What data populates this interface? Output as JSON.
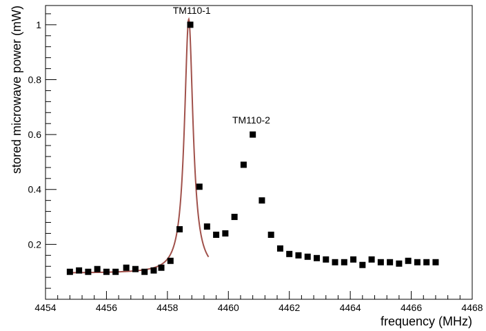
{
  "chart_data": {
    "type": "scatter",
    "xlabel": "frequency (MHz)",
    "ylabel": "stored microwave power (mW)",
    "xlim": [
      4454,
      4468
    ],
    "ylim": [
      0.0,
      1.07
    ],
    "x_ticks": [
      4454,
      4456,
      4458,
      4460,
      4462,
      4464,
      4466,
      4468
    ],
    "x_tick_labels": [
      "4454",
      "4456",
      "4458",
      "4460",
      "4462",
      "4464",
      "4466",
      "4468"
    ],
    "y_ticks": [
      0.2,
      0.4,
      0.6,
      0.8,
      1.0
    ],
    "y_tick_labels": [
      "0.2",
      "0.4",
      "0.6",
      "0.8",
      "1"
    ],
    "grid": false,
    "series": [
      {
        "type": "scatter",
        "marker": "square",
        "color": "#000000",
        "x": [
          4454.8,
          4455.1,
          4455.4,
          4455.7,
          4456.0,
          4456.3,
          4456.65,
          4456.95,
          4457.25,
          4457.55,
          4457.8,
          4458.1,
          4458.4,
          4458.75,
          4459.05,
          4459.3,
          4459.6,
          4459.9,
          4460.2,
          4460.5,
          4460.8,
          4461.1,
          4461.4,
          4461.7,
          4462.0,
          4462.3,
          4462.6,
          4462.9,
          4463.2,
          4463.5,
          4463.8,
          4464.1,
          4464.4,
          4464.7,
          4465.0,
          4465.3,
          4465.6,
          4465.9,
          4466.2,
          4466.5,
          4466.8
        ],
        "y": [
          0.1,
          0.105,
          0.1,
          0.11,
          0.1,
          0.1,
          0.115,
          0.11,
          0.1,
          0.105,
          0.115,
          0.14,
          0.255,
          1.0,
          0.41,
          0.265,
          0.235,
          0.24,
          0.3,
          0.49,
          0.6,
          0.36,
          0.235,
          0.185,
          0.165,
          0.16,
          0.155,
          0.15,
          0.145,
          0.135,
          0.135,
          0.145,
          0.125,
          0.145,
          0.135,
          0.135,
          0.13,
          0.14,
          0.135,
          0.135,
          0.135
        ]
      },
      {
        "type": "line",
        "curve": "lorentzian fit",
        "color": "#a0504a",
        "center": 4458.7,
        "peak": 1.02,
        "baseline": 0.095,
        "half_width": 0.17,
        "x_range": [
          4454.8,
          4459.35
        ]
      }
    ],
    "annotations": [
      {
        "text": "TM110-1",
        "x": 4458.8,
        "y": 1.04
      },
      {
        "text": "TM110-2",
        "x": 4460.75,
        "y": 0.64
      }
    ]
  }
}
